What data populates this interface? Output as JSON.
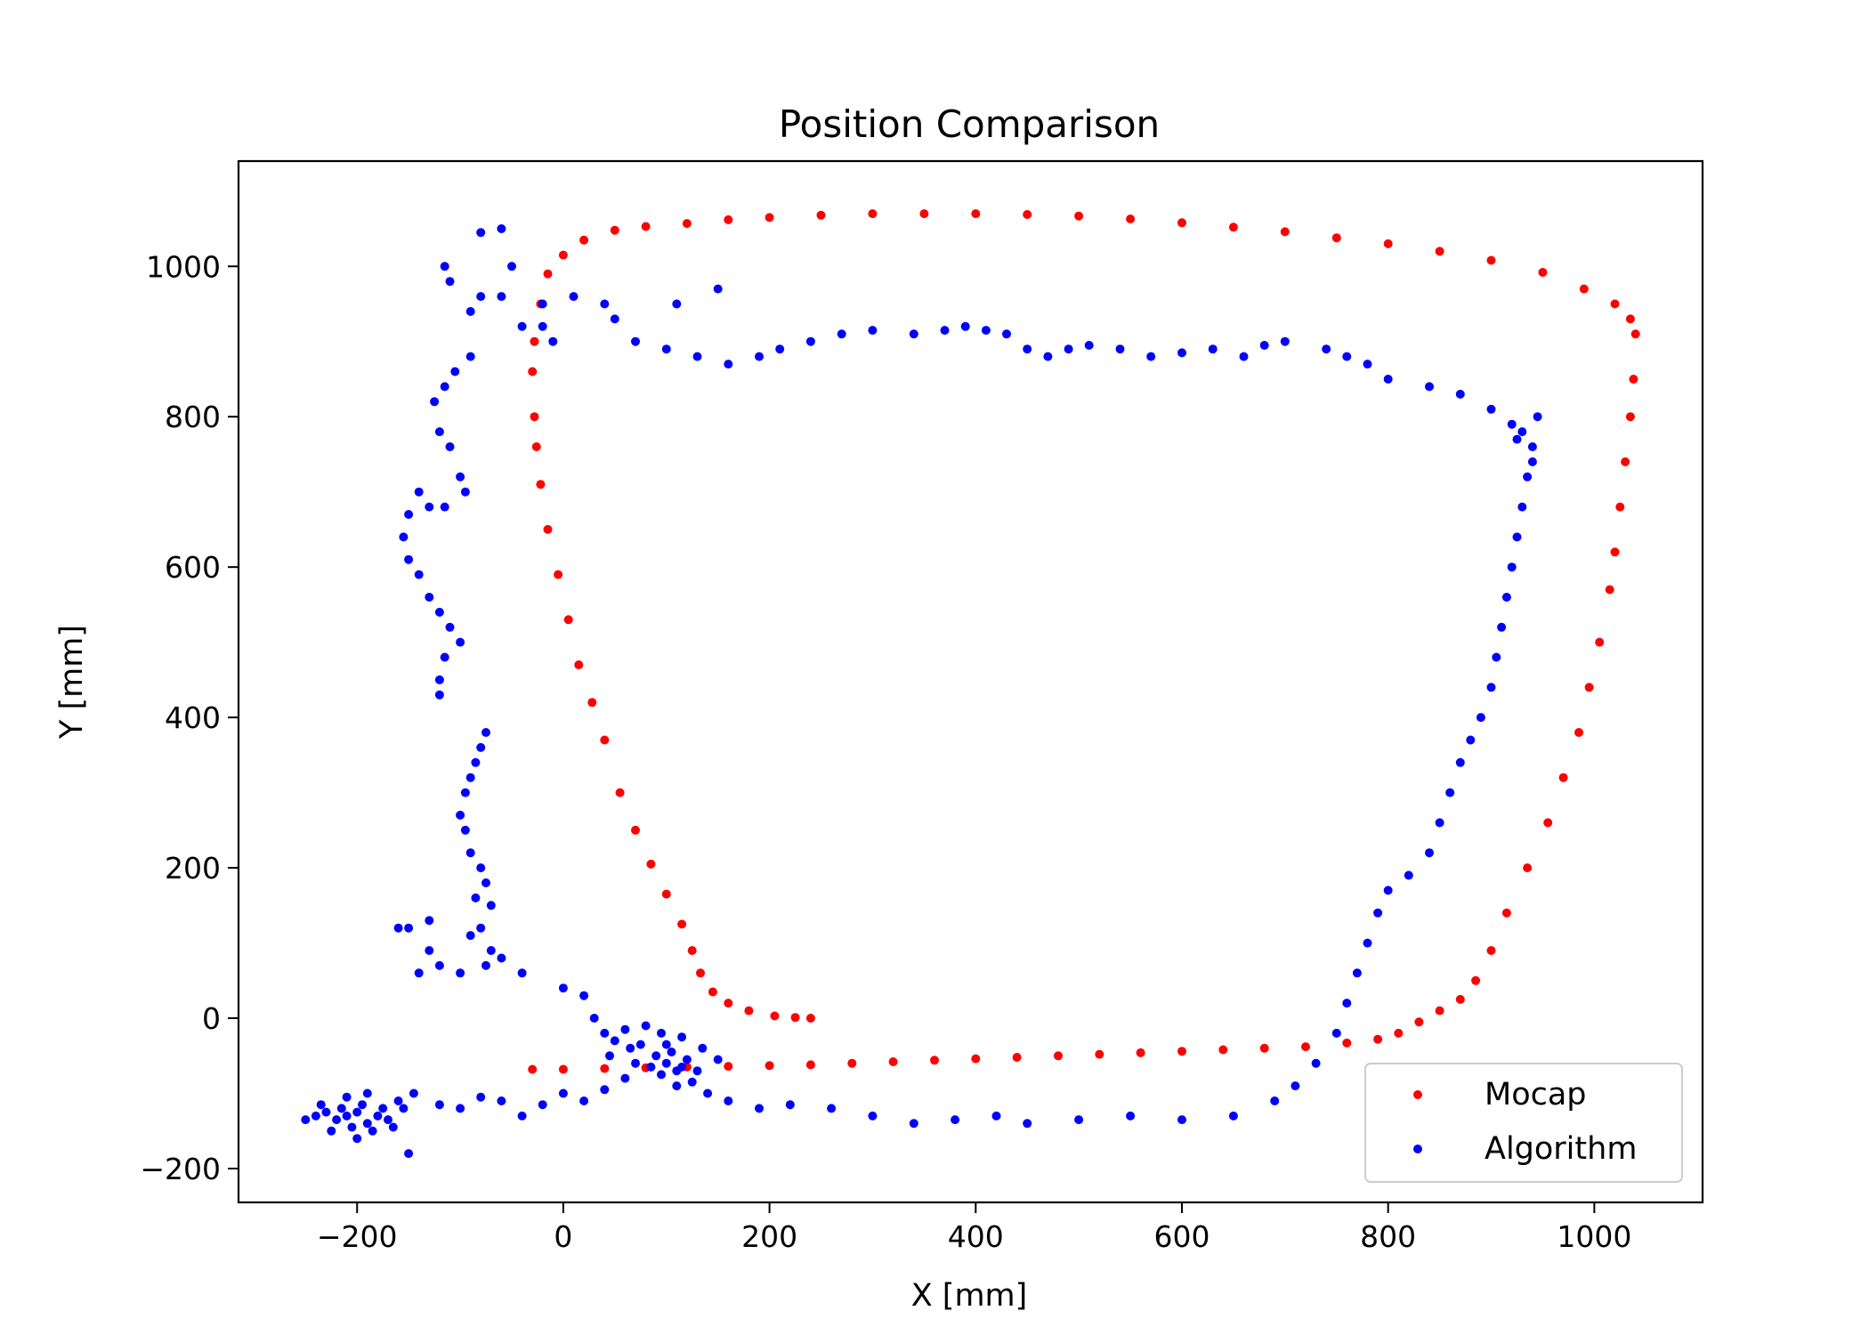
{
  "chart_data": {
    "type": "scatter",
    "title": "Position Comparison",
    "xlabel": "X [mm]",
    "ylabel": "Y [mm]",
    "xlim": [
      -315,
      1105
    ],
    "ylim": [
      -245,
      1140
    ],
    "xticks": [
      -200,
      0,
      200,
      400,
      600,
      800,
      1000
    ],
    "yticks": [
      -200,
      0,
      200,
      400,
      600,
      800,
      1000
    ],
    "xtick_labels": [
      "−200",
      "0",
      "200",
      "400",
      "600",
      "800",
      "1000"
    ],
    "ytick_labels": [
      "−200",
      "0",
      "200",
      "400",
      "600",
      "800",
      "1000"
    ],
    "grid": false,
    "legend_position": "lower-right",
    "series": [
      {
        "name": "Mocap",
        "color": "#ff0000",
        "points": [
          [
            240,
            0
          ],
          [
            225,
            1
          ],
          [
            205,
            3
          ],
          [
            180,
            10
          ],
          [
            160,
            20
          ],
          [
            145,
            35
          ],
          [
            133,
            60
          ],
          [
            125,
            90
          ],
          [
            115,
            125
          ],
          [
            100,
            165
          ],
          [
            85,
            205
          ],
          [
            70,
            250
          ],
          [
            55,
            300
          ],
          [
            40,
            370
          ],
          [
            28,
            420
          ],
          [
            15,
            470
          ],
          [
            5,
            530
          ],
          [
            -5,
            590
          ],
          [
            -15,
            650
          ],
          [
            -22,
            710
          ],
          [
            -26,
            760
          ],
          [
            -28,
            800
          ],
          [
            -30,
            860
          ],
          [
            -28,
            900
          ],
          [
            -22,
            950
          ],
          [
            -15,
            990
          ],
          [
            0,
            1015
          ],
          [
            20,
            1035
          ],
          [
            50,
            1048
          ],
          [
            80,
            1053
          ],
          [
            120,
            1057
          ],
          [
            160,
            1062
          ],
          [
            200,
            1065
          ],
          [
            250,
            1068
          ],
          [
            300,
            1070
          ],
          [
            350,
            1070
          ],
          [
            400,
            1070
          ],
          [
            450,
            1069
          ],
          [
            500,
            1067
          ],
          [
            550,
            1063
          ],
          [
            600,
            1058
          ],
          [
            650,
            1052
          ],
          [
            700,
            1046
          ],
          [
            750,
            1038
          ],
          [
            800,
            1030
          ],
          [
            850,
            1020
          ],
          [
            900,
            1008
          ],
          [
            950,
            992
          ],
          [
            990,
            970
          ],
          [
            1020,
            950
          ],
          [
            1035,
            930
          ],
          [
            1040,
            910
          ],
          [
            1038,
            850
          ],
          [
            1035,
            800
          ],
          [
            1030,
            740
          ],
          [
            1025,
            680
          ],
          [
            1020,
            620
          ],
          [
            1015,
            570
          ],
          [
            1005,
            500
          ],
          [
            995,
            440
          ],
          [
            985,
            380
          ],
          [
            970,
            320
          ],
          [
            955,
            260
          ],
          [
            935,
            200
          ],
          [
            915,
            140
          ],
          [
            900,
            90
          ],
          [
            885,
            50
          ],
          [
            870,
            25
          ],
          [
            850,
            10
          ],
          [
            830,
            -5
          ],
          [
            810,
            -20
          ],
          [
            790,
            -28
          ],
          [
            760,
            -33
          ],
          [
            720,
            -38
          ],
          [
            680,
            -40
          ],
          [
            640,
            -42
          ],
          [
            600,
            -44
          ],
          [
            560,
            -46
          ],
          [
            520,
            -48
          ],
          [
            480,
            -50
          ],
          [
            440,
            -52
          ],
          [
            400,
            -54
          ],
          [
            360,
            -56
          ],
          [
            320,
            -58
          ],
          [
            280,
            -60
          ],
          [
            240,
            -62
          ],
          [
            200,
            -63
          ],
          [
            160,
            -64
          ],
          [
            120,
            -65
          ],
          [
            80,
            -66
          ],
          [
            40,
            -67
          ],
          [
            0,
            -68
          ],
          [
            -30,
            -68
          ]
        ]
      },
      {
        "name": "Algorithm",
        "color": "#0000ff",
        "points": [
          [
            -210,
            -130
          ],
          [
            -200,
            -125
          ],
          [
            -190,
            -140
          ],
          [
            -205,
            -145
          ],
          [
            -215,
            -120
          ],
          [
            -195,
            -115
          ],
          [
            -180,
            -130
          ],
          [
            -220,
            -135
          ],
          [
            -230,
            -125
          ],
          [
            -185,
            -150
          ],
          [
            -175,
            -120
          ],
          [
            -200,
            -160
          ],
          [
            -240,
            -130
          ],
          [
            -250,
            -135
          ],
          [
            -170,
            -135
          ],
          [
            -160,
            -110
          ],
          [
            -150,
            -180
          ],
          [
            -210,
            -105
          ],
          [
            -190,
            -100
          ],
          [
            -155,
            -120
          ],
          [
            -225,
            -150
          ],
          [
            -165,
            -145
          ],
          [
            -145,
            -100
          ],
          [
            -235,
            -115
          ],
          [
            -120,
            -115
          ],
          [
            -100,
            -120
          ],
          [
            -80,
            -105
          ],
          [
            -60,
            -110
          ],
          [
            -40,
            -130
          ],
          [
            -20,
            -115
          ],
          [
            0,
            -100
          ],
          [
            20,
            -110
          ],
          [
            40,
            -95
          ],
          [
            60,
            -80
          ],
          [
            70,
            -60
          ],
          [
            90,
            -50
          ],
          [
            100,
            -60
          ],
          [
            110,
            -70
          ],
          [
            120,
            -55
          ],
          [
            95,
            -75
          ],
          [
            105,
            -45
          ],
          [
            115,
            -65
          ],
          [
            85,
            -65
          ],
          [
            130,
            -70
          ],
          [
            100,
            -35
          ],
          [
            110,
            -90
          ],
          [
            125,
            -85
          ],
          [
            140,
            -100
          ],
          [
            160,
            -110
          ],
          [
            190,
            -120
          ],
          [
            220,
            -115
          ],
          [
            260,
            -120
          ],
          [
            300,
            -130
          ],
          [
            340,
            -140
          ],
          [
            380,
            -135
          ],
          [
            420,
            -130
          ],
          [
            450,
            -140
          ],
          [
            500,
            -135
          ],
          [
            550,
            -130
          ],
          [
            600,
            -135
          ],
          [
            650,
            -130
          ],
          [
            690,
            -110
          ],
          [
            710,
            -90
          ],
          [
            730,
            -60
          ],
          [
            750,
            -20
          ],
          [
            760,
            20
          ],
          [
            770,
            60
          ],
          [
            780,
            100
          ],
          [
            790,
            140
          ],
          [
            800,
            170
          ],
          [
            820,
            190
          ],
          [
            840,
            220
          ],
          [
            850,
            260
          ],
          [
            860,
            300
          ],
          [
            870,
            340
          ],
          [
            880,
            370
          ],
          [
            890,
            400
          ],
          [
            900,
            440
          ],
          [
            905,
            480
          ],
          [
            910,
            520
          ],
          [
            915,
            560
          ],
          [
            920,
            600
          ],
          [
            925,
            640
          ],
          [
            930,
            680
          ],
          [
            935,
            720
          ],
          [
            940,
            760
          ],
          [
            930,
            780
          ],
          [
            920,
            790
          ],
          [
            945,
            800
          ],
          [
            925,
            770
          ],
          [
            940,
            740
          ],
          [
            900,
            810
          ],
          [
            870,
            830
          ],
          [
            840,
            840
          ],
          [
            800,
            850
          ],
          [
            780,
            870
          ],
          [
            760,
            880
          ],
          [
            740,
            890
          ],
          [
            700,
            900
          ],
          [
            680,
            895
          ],
          [
            660,
            880
          ],
          [
            630,
            890
          ],
          [
            600,
            885
          ],
          [
            570,
            880
          ],
          [
            540,
            890
          ],
          [
            510,
            895
          ],
          [
            490,
            890
          ],
          [
            470,
            880
          ],
          [
            450,
            890
          ],
          [
            430,
            910
          ],
          [
            410,
            915
          ],
          [
            390,
            920
          ],
          [
            370,
            915
          ],
          [
            340,
            910
          ],
          [
            300,
            915
          ],
          [
            270,
            910
          ],
          [
            240,
            900
          ],
          [
            210,
            890
          ],
          [
            190,
            880
          ],
          [
            160,
            870
          ],
          [
            130,
            880
          ],
          [
            100,
            890
          ],
          [
            70,
            900
          ],
          [
            50,
            930
          ],
          [
            40,
            950
          ],
          [
            10,
            960
          ],
          [
            -20,
            950
          ],
          [
            -40,
            920
          ],
          [
            -60,
            960
          ],
          [
            -80,
            960
          ],
          [
            -90,
            940
          ],
          [
            -110,
            980
          ],
          [
            -115,
            1000
          ],
          [
            -80,
            1045
          ],
          [
            -60,
            1050
          ],
          [
            -50,
            1000
          ],
          [
            -20,
            920
          ],
          [
            -10,
            900
          ],
          [
            150,
            970
          ],
          [
            110,
            950
          ],
          [
            -90,
            880
          ],
          [
            -105,
            860
          ],
          [
            -115,
            840
          ],
          [
            -125,
            820
          ],
          [
            -120,
            780
          ],
          [
            -110,
            760
          ],
          [
            -100,
            720
          ],
          [
            -95,
            700
          ],
          [
            -115,
            680
          ],
          [
            -130,
            680
          ],
          [
            -140,
            700
          ],
          [
            -150,
            670
          ],
          [
            -155,
            640
          ],
          [
            -150,
            610
          ],
          [
            -140,
            590
          ],
          [
            -130,
            560
          ],
          [
            -120,
            540
          ],
          [
            -110,
            520
          ],
          [
            -100,
            500
          ],
          [
            -115,
            480
          ],
          [
            -120,
            450
          ],
          [
            -120,
            430
          ],
          [
            -75,
            380
          ],
          [
            -80,
            360
          ],
          [
            -85,
            340
          ],
          [
            -90,
            320
          ],
          [
            -95,
            300
          ],
          [
            -100,
            270
          ],
          [
            -95,
            250
          ],
          [
            -90,
            220
          ],
          [
            -80,
            200
          ],
          [
            -75,
            180
          ],
          [
            -85,
            160
          ],
          [
            -70,
            150
          ],
          [
            -80,
            120
          ],
          [
            -90,
            110
          ],
          [
            -70,
            90
          ],
          [
            -60,
            80
          ],
          [
            -75,
            70
          ],
          [
            -100,
            60
          ],
          [
            -120,
            70
          ],
          [
            -140,
            60
          ],
          [
            -130,
            90
          ],
          [
            -150,
            120
          ],
          [
            -160,
            120
          ],
          [
            -130,
            130
          ],
          [
            -40,
            60
          ],
          [
            0,
            40
          ],
          [
            20,
            30
          ],
          [
            30,
            0
          ],
          [
            40,
            -20
          ],
          [
            50,
            -30
          ],
          [
            60,
            -15
          ],
          [
            80,
            -10
          ],
          [
            65,
            -40
          ],
          [
            45,
            -50
          ],
          [
            75,
            -35
          ],
          [
            95,
            -20
          ],
          [
            115,
            -25
          ],
          [
            135,
            -40
          ],
          [
            150,
            -55
          ]
        ]
      }
    ]
  }
}
